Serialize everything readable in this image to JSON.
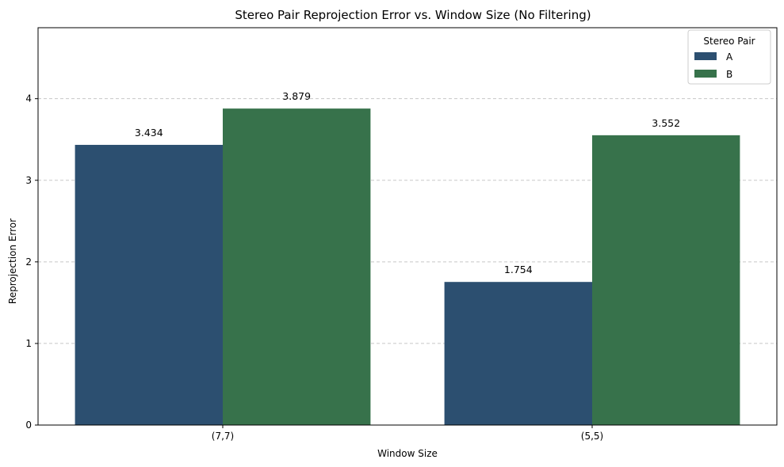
{
  "chart_data": {
    "type": "bar",
    "title": "Stereo Pair Reprojection Error vs. Window Size (No Filtering)",
    "xlabel": "Window Size",
    "ylabel": "Reprojection Error",
    "categories": [
      "(7,7)",
      "(5,5)"
    ],
    "series": [
      {
        "name": "A",
        "values": [
          3.434,
          1.754
        ],
        "color": "#2c4f70"
      },
      {
        "name": "B",
        "values": [
          3.879,
          3.552
        ],
        "color": "#37724b"
      }
    ],
    "data_labels": [
      [
        "3.434",
        "1.754"
      ],
      [
        "3.879",
        "3.552"
      ]
    ],
    "ylim": [
      0,
      4.87
    ],
    "yticks": [
      0,
      1,
      2,
      3,
      4
    ],
    "grid": {
      "y": true,
      "style": "dashed"
    },
    "legend": {
      "title": "Stereo Pair",
      "placement": "top-right"
    }
  }
}
